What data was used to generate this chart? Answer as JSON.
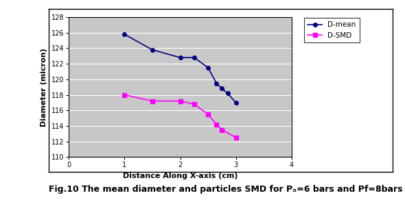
{
  "d_mean_x": [
    1.0,
    1.5,
    2.0,
    2.25,
    2.5,
    2.65,
    2.75,
    2.85,
    3.0
  ],
  "d_mean_y": [
    125.8,
    123.8,
    122.8,
    122.8,
    121.5,
    119.5,
    118.8,
    118.2,
    117.0
  ],
  "d_smd_x": [
    1.0,
    1.5,
    2.0,
    2.25,
    2.5,
    2.65,
    2.75,
    3.0
  ],
  "d_smd_y": [
    118.0,
    117.2,
    117.2,
    116.8,
    115.5,
    114.2,
    113.5,
    112.5
  ],
  "d_mean_color": "#000080",
  "d_smd_color": "#FF00FF",
  "xlabel": "Distance Along X-axis (cm)",
  "ylabel": "Diameter (micron)",
  "legend_d_mean": "D-mean",
  "legend_d_smd": "D-SMD",
  "xlim": [
    0,
    4
  ],
  "ylim": [
    110,
    128
  ],
  "yticks": [
    110,
    112,
    114,
    116,
    118,
    120,
    122,
    124,
    126,
    128
  ],
  "xticks": [
    0,
    1,
    2,
    3,
    4
  ],
  "plot_bg_color": "#C8C8C8",
  "fig_bg_color": "#FFFFFF",
  "outer_box_color": "#000000",
  "caption": "Fig.10 The mean diameter and particles SMD for Pₒ=6 bars and Pf=8bars"
}
